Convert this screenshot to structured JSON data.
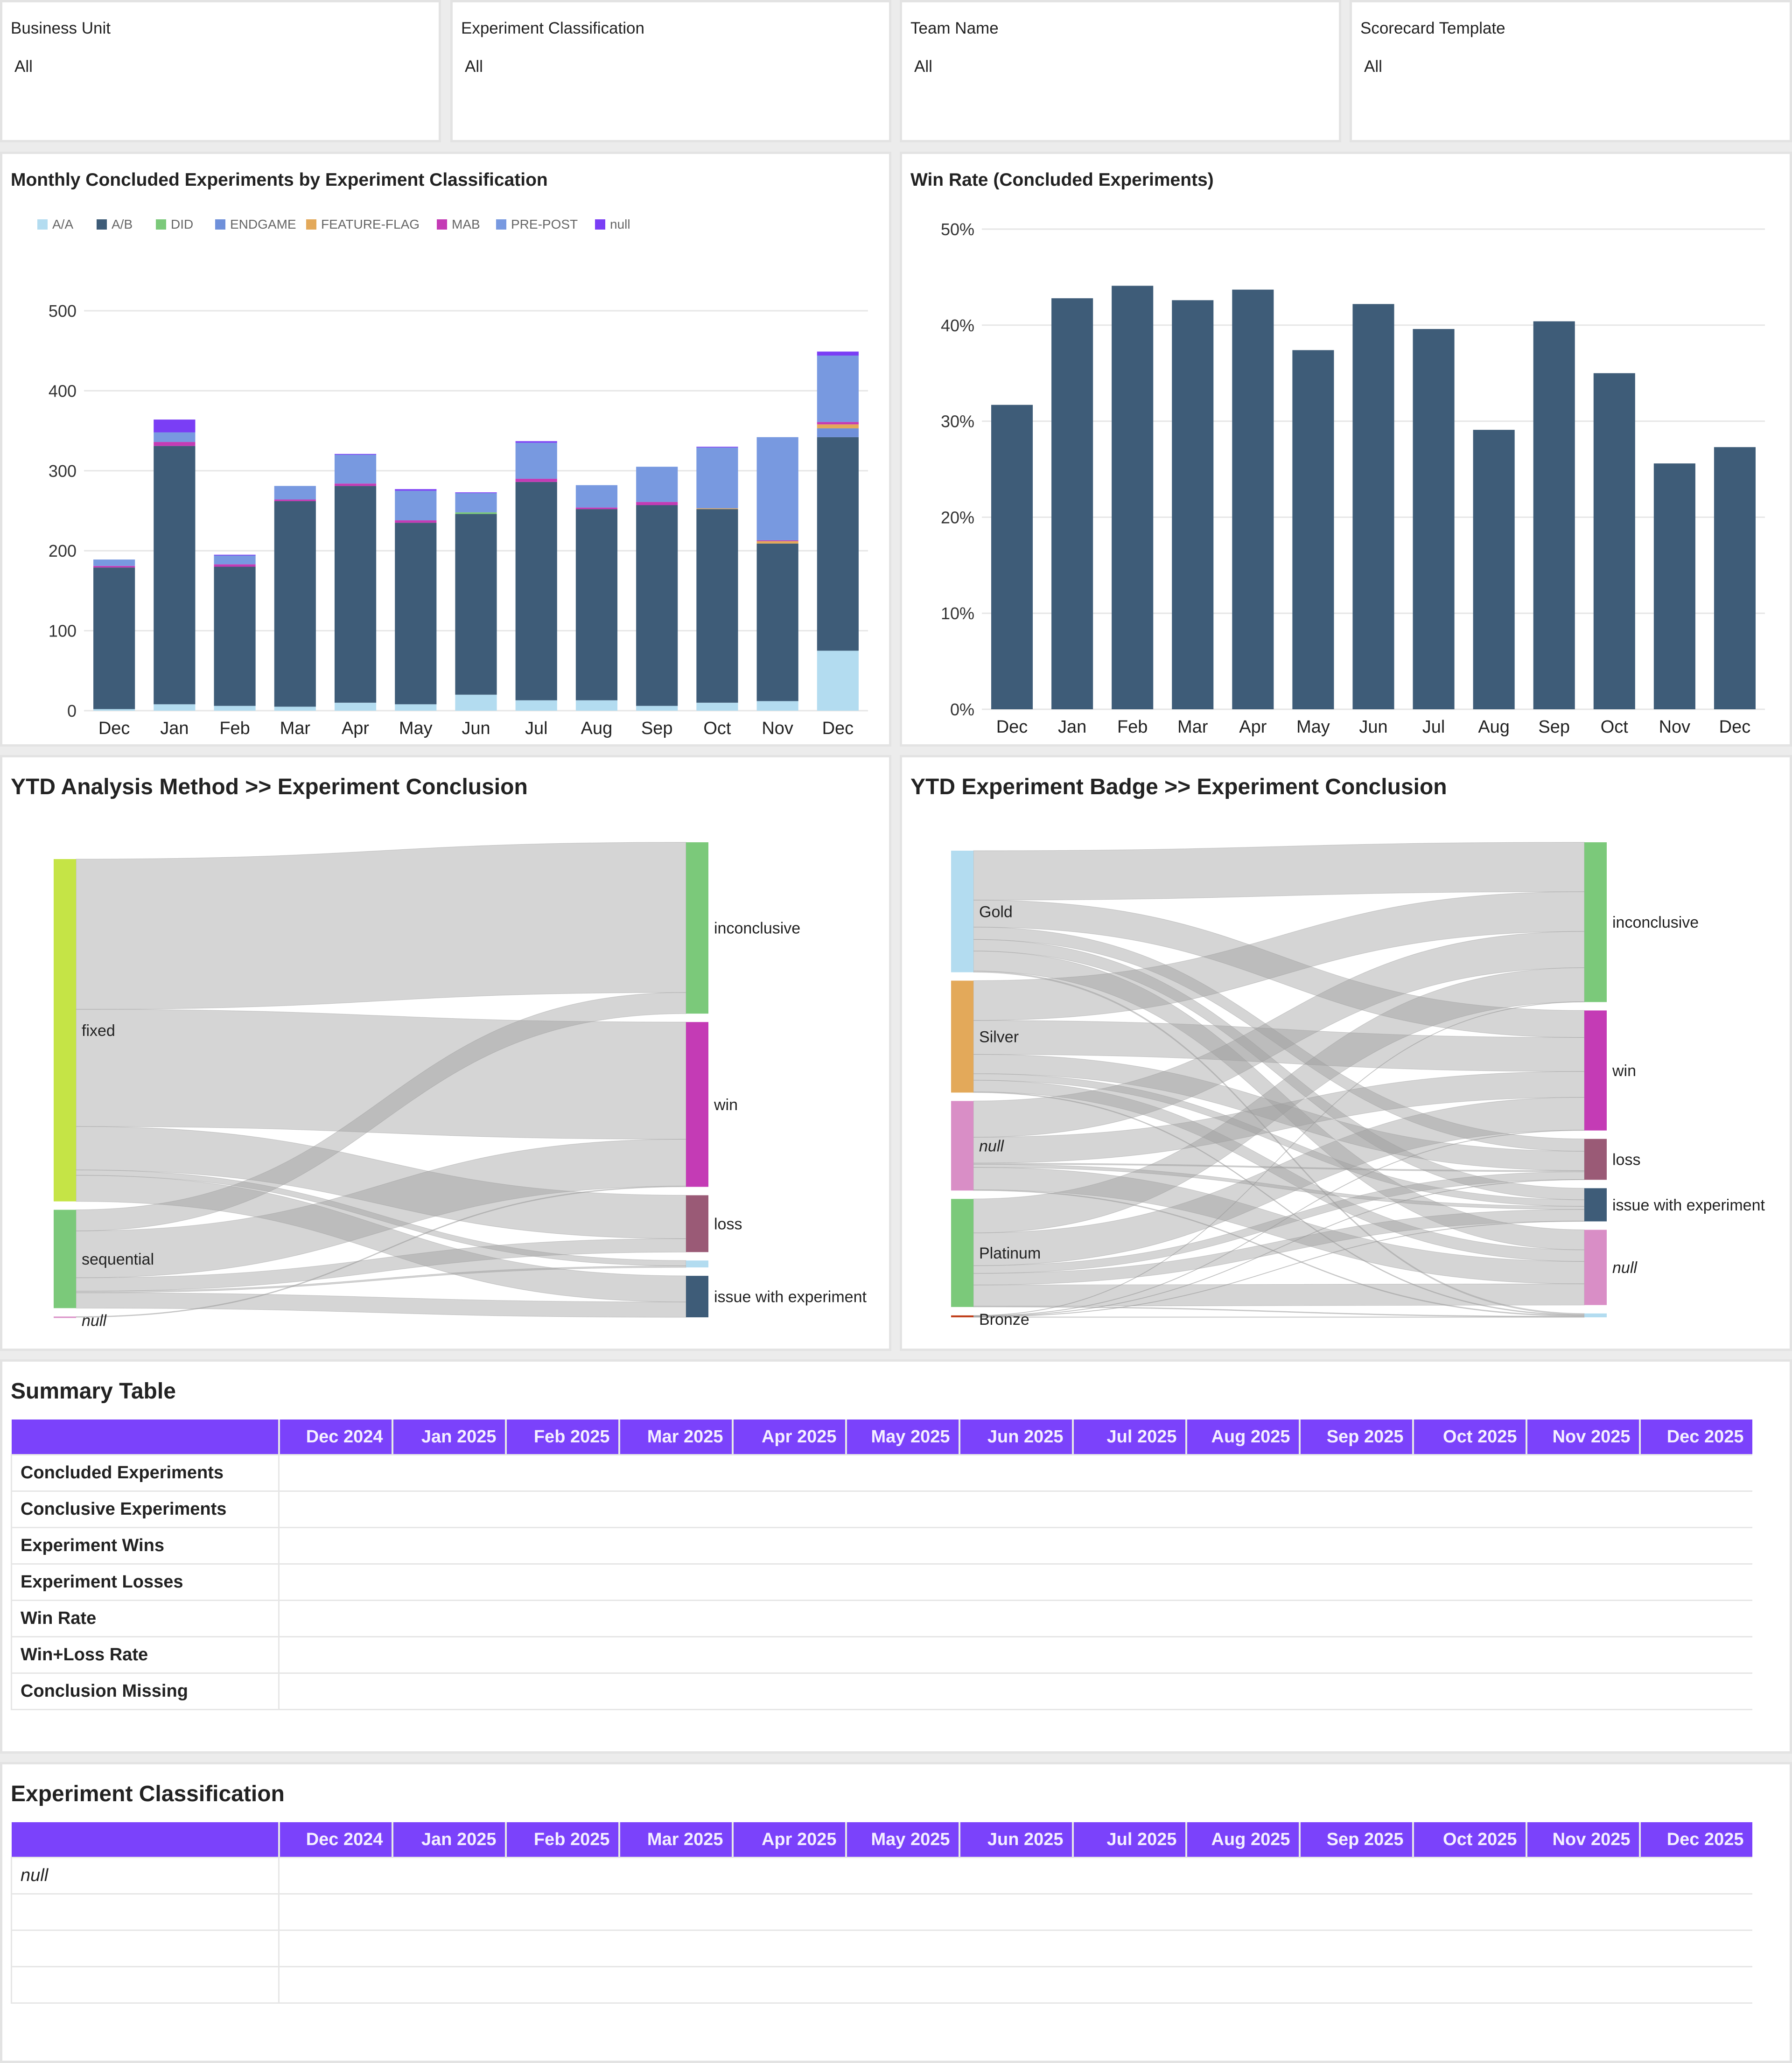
{
  "filters": [
    {
      "label": "Business Unit",
      "value": "All"
    },
    {
      "label": "Experiment Classification",
      "value": "All"
    },
    {
      "label": "Team Name",
      "value": "All"
    },
    {
      "label": "Scorecard Template",
      "value": "All"
    }
  ],
  "chart_data": [
    {
      "type": "bar",
      "stacked": true,
      "title": "Monthly Concluded Experiments by Experiment Classification",
      "categories": [
        "Dec",
        "Jan",
        "Feb",
        "Mar",
        "Apr",
        "May",
        "Jun",
        "Jul",
        "Aug",
        "Sep",
        "Oct",
        "Nov",
        "Dec"
      ],
      "ylim": [
        0,
        500
      ],
      "yticks": [
        0,
        100,
        200,
        300,
        400,
        500
      ],
      "grid": true,
      "legend_placement": "top-left",
      "series": [
        {
          "name": "A/A",
          "color": "#b3dcf0",
          "values": [
            2,
            8,
            6,
            5,
            10,
            8,
            20,
            13,
            13,
            6,
            10,
            12,
            75
          ]
        },
        {
          "name": "A/B",
          "color": "#3e5c78",
          "values": [
            177,
            323,
            174,
            257,
            271,
            227,
            226,
            273,
            239,
            251,
            242,
            197,
            267
          ]
        },
        {
          "name": "DID",
          "color": "#7bc97a",
          "values": [
            0,
            0,
            0,
            0,
            0,
            0,
            2,
            0,
            0,
            0,
            0,
            0,
            0
          ]
        },
        {
          "name": "ENDGAME",
          "color": "#6f90da",
          "values": [
            0,
            0,
            0,
            0,
            0,
            0,
            0,
            0,
            0,
            0,
            0,
            0,
            11
          ]
        },
        {
          "name": "FEATURE-FLAG",
          "color": "#e3a95a",
          "values": [
            0,
            0,
            0,
            0,
            0,
            0,
            0,
            0,
            0,
            0,
            1,
            3,
            5
          ]
        },
        {
          "name": "MAB",
          "color": "#c43bb5",
          "values": [
            2,
            5,
            3,
            2,
            3,
            3,
            0,
            4,
            2,
            4,
            0,
            1,
            3
          ]
        },
        {
          "name": "PRE-POST",
          "color": "#7899e0",
          "values": [
            8,
            12,
            11,
            17,
            36,
            37,
            24,
            45,
            28,
            44,
            76,
            129,
            83
          ]
        },
        {
          "name": "null",
          "color": "#7a3ef5",
          "values": [
            0,
            16,
            1,
            0,
            1,
            2,
            1,
            2,
            0,
            0,
            1,
            0,
            5
          ]
        }
      ]
    },
    {
      "type": "bar",
      "title": "Win Rate (Concluded Experiments)",
      "categories": [
        "Dec",
        "Jan",
        "Feb",
        "Mar",
        "Apr",
        "May",
        "Jun",
        "Jul",
        "Aug",
        "Sep",
        "Oct",
        "Nov",
        "Dec"
      ],
      "values": [
        31.7,
        42.8,
        44.1,
        42.6,
        43.7,
        37.4,
        42.2,
        39.6,
        29.1,
        40.4,
        35.0,
        25.6,
        27.3
      ],
      "unit": "%",
      "ylim": [
        0,
        50
      ],
      "yticks": [
        "0%",
        "10%",
        "20%",
        "30%",
        "40%",
        "50%"
      ],
      "grid": true,
      "color": "#3e5c78"
    }
  ],
  "sankeys": [
    {
      "title": "YTD Analysis Method >> Experiment Conclusion",
      "sources": [
        {
          "name": "fixed",
          "color": "#c5e446"
        },
        {
          "name": "sequential",
          "color": "#7bc97a"
        },
        {
          "name": "null",
          "color": "#d98ec6",
          "italic": true
        }
      ],
      "targets": [
        {
          "name": "inconclusive",
          "color": "#7bc97a"
        },
        {
          "name": "win",
          "color": "#c43bb5"
        },
        {
          "name": "loss",
          "color": "#9a5a76"
        },
        {
          "name": "",
          "color": "#b3dcf0"
        },
        {
          "name": "issue with experiment",
          "color": "#3e5c78"
        }
      ],
      "links": [
        [
          0,
          0,
          391
        ],
        [
          0,
          1,
          305
        ],
        [
          0,
          2,
          113
        ],
        [
          0,
          3,
          14
        ],
        [
          0,
          4,
          68
        ],
        [
          1,
          0,
          55
        ],
        [
          1,
          1,
          122
        ],
        [
          1,
          2,
          35
        ],
        [
          1,
          3,
          4
        ],
        [
          1,
          4,
          40
        ],
        [
          2,
          1,
          2
        ]
      ]
    },
    {
      "title": "YTD Experiment Badge >> Experiment Conclusion",
      "sources": [
        {
          "name": "Gold",
          "color": "#b3dcf0"
        },
        {
          "name": "Silver",
          "color": "#e3a95a"
        },
        {
          "name": "null",
          "color": "#d98ec6",
          "italic": true
        },
        {
          "name": "Platinum",
          "color": "#7bc97a"
        },
        {
          "name": "Bronze",
          "color": "#c0401c"
        }
      ],
      "targets": [
        {
          "name": "inconclusive",
          "color": "#7bc97a"
        },
        {
          "name": "win",
          "color": "#c43bb5"
        },
        {
          "name": "loss",
          "color": "#9a5a76"
        },
        {
          "name": "issue with experiment",
          "color": "#3e5c78"
        },
        {
          "name": "null",
          "color": "#d98ec6",
          "italic": true
        },
        {
          "name": "",
          "color": "#b3dcf0"
        }
      ],
      "links": [
        [
          0,
          0,
          128
        ],
        [
          0,
          1,
          70
        ],
        [
          0,
          2,
          32
        ],
        [
          0,
          3,
          30
        ],
        [
          0,
          4,
          52
        ],
        [
          0,
          5,
          3
        ],
        [
          1,
          0,
          103
        ],
        [
          1,
          1,
          88
        ],
        [
          1,
          2,
          50
        ],
        [
          1,
          3,
          17
        ],
        [
          1,
          4,
          30
        ],
        [
          1,
          5,
          2
        ],
        [
          2,
          0,
          94
        ],
        [
          2,
          1,
          67
        ],
        [
          2,
          2,
          3
        ],
        [
          2,
          3,
          8
        ],
        [
          2,
          4,
          58
        ],
        [
          2,
          5,
          2
        ],
        [
          3,
          0,
          88
        ],
        [
          3,
          1,
          85
        ],
        [
          3,
          2,
          20
        ],
        [
          3,
          3,
          30
        ],
        [
          3,
          4,
          55
        ],
        [
          3,
          5,
          2
        ],
        [
          4,
          0,
          1
        ],
        [
          4,
          1,
          1
        ],
        [
          4,
          2,
          1
        ],
        [
          4,
          3,
          1
        ],
        [
          4,
          5,
          1
        ]
      ]
    }
  ],
  "summary_table": {
    "title": "Summary Table",
    "header_color": "#7b42fb",
    "columns": [
      "Dec 2024",
      "Jan 2025",
      "Feb 2025",
      "Mar 2025",
      "Apr 2025",
      "May 2025",
      "Jun 2025",
      "Jul 2025",
      "Aug 2025",
      "Sep 2025",
      "Oct 2025",
      "Nov 2025",
      "Dec 2025"
    ],
    "rows": [
      "Concluded Experiments",
      "Conclusive Experiments",
      "Experiment Wins",
      "Experiment Losses",
      "Win Rate",
      "Win+Loss Rate",
      "Conclusion Missing"
    ]
  },
  "classification_table": {
    "title": "Experiment Classification",
    "columns": [
      "Dec 2024",
      "Jan 2025",
      "Feb 2025",
      "Mar 2025",
      "Apr 2025",
      "May 2025",
      "Jun 2025",
      "Jul 2025",
      "Aug 2025",
      "Sep 2025",
      "Oct 2025",
      "Nov 2025",
      "Dec 2025"
    ],
    "rows": [
      "null",
      "",
      "",
      ""
    ]
  }
}
